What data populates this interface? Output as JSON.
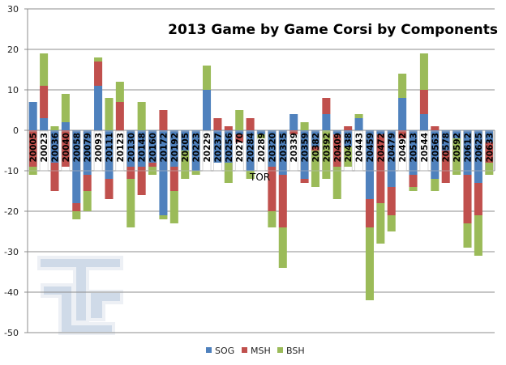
{
  "chart_data": {
    "type": "bar",
    "stacked": true,
    "title": "2013 Game by Game Corsi by Components",
    "xlabel": "",
    "ylabel": "",
    "ylim": [
      -50,
      30
    ],
    "yticks": [
      30,
      20,
      10,
      0,
      -10,
      -20,
      -30,
      -40,
      -50
    ],
    "grid": true,
    "legend_position": "bottom",
    "annotation": {
      "text": "TOR",
      "category": "20289"
    },
    "categories": [
      "20005",
      "20023",
      "20036",
      "20040",
      "20058",
      "20079",
      "20093",
      "20111",
      "20123",
      "20130",
      "20148",
      "20160",
      "20172",
      "20192",
      "20205",
      "20223",
      "20229",
      "20237",
      "20256",
      "20270",
      "20284",
      "20289",
      "20320",
      "20335",
      "20339",
      "20359",
      "20382",
      "20392",
      "20409",
      "20438",
      "20443",
      "20459",
      "20472",
      "20479",
      "20492",
      "20513",
      "20544",
      "20563",
      "20578",
      "20592",
      "20612",
      "20625",
      "20633"
    ],
    "series": [
      {
        "name": "SOG",
        "color": "#4f81bd",
        "positive": [
          7,
          3,
          0,
          2,
          0,
          0,
          11,
          0,
          0,
          0,
          0,
          0,
          0,
          0,
          0,
          0,
          10,
          0,
          0,
          0,
          0,
          0,
          0,
          0,
          4,
          0,
          0,
          4,
          0,
          0,
          3,
          0,
          0,
          0,
          8,
          0,
          4,
          0,
          0,
          0,
          0,
          0,
          0
        ],
        "negative": [
          0,
          0,
          -8,
          0,
          -18,
          -11,
          0,
          -12,
          0,
          -9,
          -9,
          -8,
          -21,
          -9,
          -5,
          -10,
          0,
          -8,
          -8,
          -1,
          -10,
          -1,
          -9,
          -11,
          0,
          -12,
          -4,
          0,
          -1,
          -4,
          0,
          -17,
          -1,
          -14,
          0,
          -11,
          0,
          -12,
          -5,
          -2,
          -11,
          -13,
          -3
        ]
      },
      {
        "name": "MSH",
        "color": "#c0504d",
        "positive": [
          0,
          8,
          0,
          0,
          0,
          0,
          6,
          0,
          7,
          0,
          0,
          0,
          5,
          0,
          0,
          0,
          0,
          3,
          1,
          0,
          3,
          0,
          0,
          0,
          0,
          0,
          0,
          4,
          0,
          1,
          0,
          0,
          0,
          0,
          0,
          0,
          6,
          1,
          0,
          0,
          0,
          0,
          0
        ],
        "negative": [
          -9,
          0,
          -7,
          -9,
          -2,
          -4,
          0,
          -5,
          0,
          -3,
          -7,
          -1,
          0,
          -6,
          0,
          0,
          0,
          0,
          0,
          -2,
          0,
          0,
          -11,
          -13,
          -1,
          -1,
          -1,
          0,
          -8,
          0,
          0,
          -7,
          -17,
          -7,
          -2,
          -3,
          0,
          0,
          -8,
          0,
          -12,
          -8,
          -5
        ]
      },
      {
        "name": "BSH",
        "color": "#9bbb59",
        "positive": [
          0,
          8,
          1,
          7,
          0,
          0,
          1,
          8,
          5,
          0,
          7,
          0,
          0,
          0,
          0,
          0,
          6,
          0,
          0,
          5,
          0,
          0,
          0,
          0,
          0,
          2,
          0,
          0,
          0,
          0,
          1,
          0,
          0,
          0,
          6,
          0,
          9,
          0,
          0,
          0,
          0,
          0,
          0
        ],
        "negative": [
          -2,
          0,
          0,
          0,
          -2,
          -5,
          0,
          0,
          0,
          -12,
          0,
          -2,
          -1,
          -8,
          -7,
          -1,
          0,
          0,
          -5,
          0,
          -2,
          -1,
          -4,
          -10,
          0,
          0,
          -9,
          -12,
          -8,
          -5,
          0,
          -18,
          -10,
          -4,
          0,
          -1,
          0,
          -3,
          0,
          -9,
          -6,
          -10,
          -3
        ]
      }
    ]
  }
}
